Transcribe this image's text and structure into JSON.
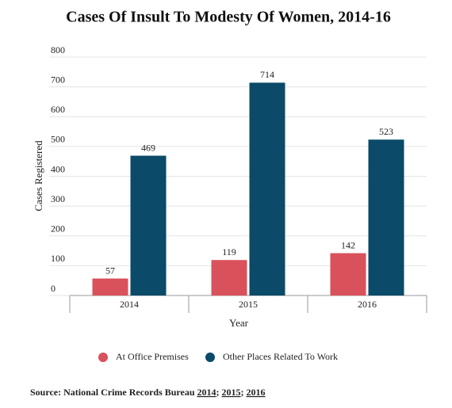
{
  "chart_data": {
    "type": "bar",
    "title": "Cases Of Insult To Modesty Of Women, 2014-16",
    "x_label": "Year",
    "y_label": "Cases Registered",
    "categories": [
      "2014",
      "2015",
      "2016"
    ],
    "series": [
      {
        "name": "At Office Premises",
        "color": "#d9515b",
        "values": [
          57,
          119,
          142
        ]
      },
      {
        "name": "Other Places Related To Work",
        "color": "#0b4a68",
        "values": [
          469,
          714,
          523
        ]
      }
    ],
    "ylim": [
      0,
      800
    ],
    "yticks": [
      0,
      100,
      200,
      300,
      400,
      500,
      600,
      700,
      800
    ],
    "grid": true,
    "source_label": "Source: National Crime Records Bureau",
    "source_links": [
      "2014",
      "2015",
      "2016"
    ],
    "source_separator": ";"
  }
}
